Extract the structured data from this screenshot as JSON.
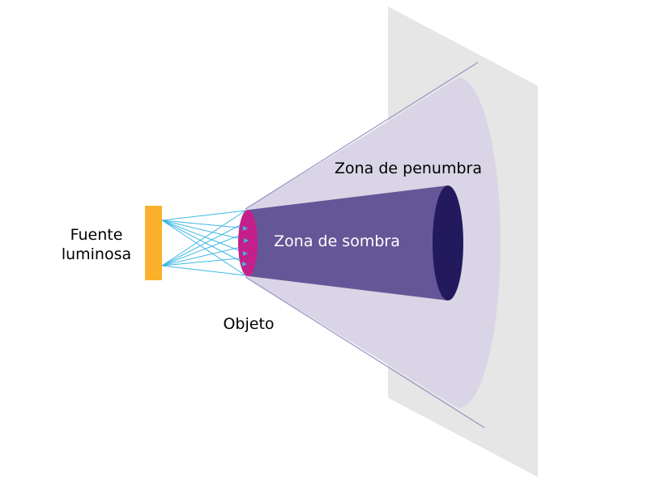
{
  "labels": {
    "light_source_line1": "Fuente",
    "light_source_line2": "luminosa",
    "object": "Objeto",
    "penumbra": "Zona de penumbra",
    "shadow": "Zona de sombra"
  },
  "colors": {
    "screen": "#e6e6e6",
    "penumbra_fill": "#d9d5e6",
    "penumbra_line": "#9a90c2",
    "shadow_fill": "#655797",
    "shadow_end": "#221a5c",
    "object": "#c4208c",
    "light_source": "#fbb12b",
    "rays": "#3fb7e4",
    "text_dark": "#000000",
    "text_light": "#ffffff"
  }
}
